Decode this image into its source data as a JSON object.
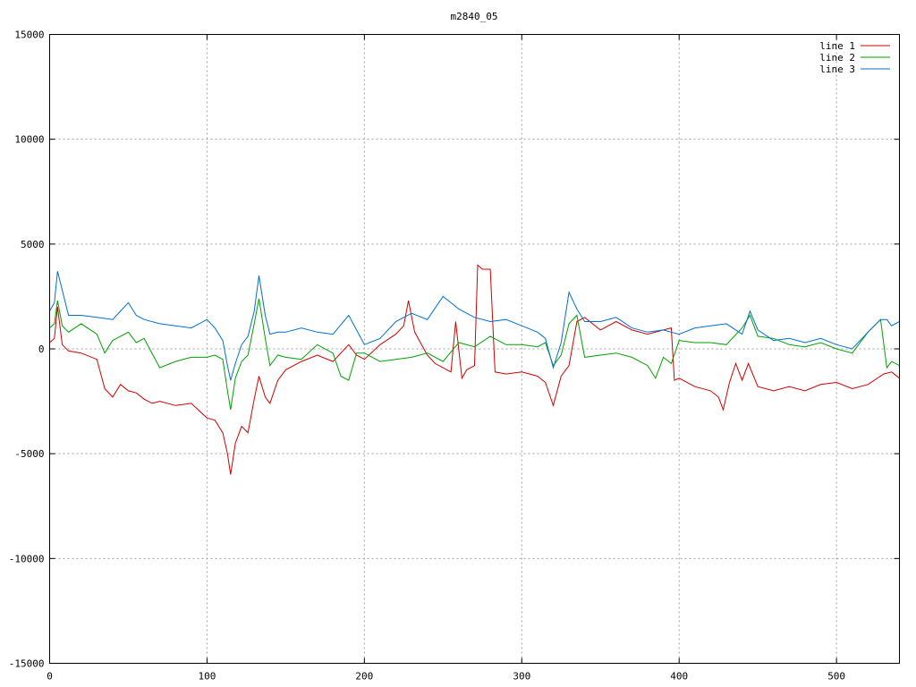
{
  "chart_data": {
    "type": "line",
    "title": "m2840_05",
    "xlabel": "",
    "ylabel": "",
    "xlim": [
      0,
      540
    ],
    "ylim": [
      -15000,
      15000
    ],
    "xticks": [
      0,
      100,
      200,
      300,
      400,
      500
    ],
    "yticks": [
      -15000,
      -10000,
      -5000,
      0,
      5000,
      10000,
      15000
    ],
    "grid": true,
    "legend_position": "top-right",
    "series": [
      {
        "name": "line 1",
        "color": "#d00000",
        "x": [
          0,
          3,
          5,
          8,
          12,
          20,
          30,
          35,
          40,
          45,
          50,
          55,
          60,
          65,
          70,
          80,
          90,
          100,
          105,
          110,
          113,
          115,
          118,
          122,
          126,
          130,
          133,
          137,
          140,
          145,
          150,
          160,
          170,
          180,
          190,
          195,
          200,
          210,
          220,
          225,
          228,
          232,
          240,
          245,
          255,
          258,
          262,
          265,
          270,
          272,
          275,
          280,
          283,
          290,
          300,
          310,
          315,
          320,
          325,
          330,
          335,
          340,
          350,
          360,
          370,
          380,
          390,
          395,
          397,
          400,
          410,
          420,
          425,
          428,
          432,
          436,
          440,
          444,
          450,
          460,
          470,
          480,
          490,
          500,
          510,
          520,
          530,
          535,
          540
        ],
        "y": [
          300,
          500,
          2000,
          200,
          -100,
          -200,
          -500,
          -1900,
          -2300,
          -1700,
          -2000,
          -2100,
          -2400,
          -2600,
          -2500,
          -2700,
          -2600,
          -3300,
          -3400,
          -4000,
          -5000,
          -6000,
          -4500,
          -3700,
          -4000,
          -2400,
          -1300,
          -2300,
          -2600,
          -1500,
          -1000,
          -600,
          -300,
          -600,
          200,
          -300,
          -500,
          200,
          700,
          1100,
          2300,
          800,
          -300,
          -700,
          -1100,
          1300,
          -1400,
          -1000,
          -800,
          4000,
          3800,
          3800,
          -1100,
          -1200,
          -1100,
          -1300,
          -1600,
          -2700,
          -1300,
          -800,
          1300,
          1500,
          900,
          1300,
          900,
          700,
          900,
          1000,
          -1500,
          -1400,
          -1800,
          -2000,
          -2300,
          -2900,
          -1600,
          -700,
          -1500,
          -700,
          -1800,
          -2000,
          -1800,
          -2000,
          -1700,
          -1600,
          -1900,
          -1700,
          -1200,
          -1100,
          -1400
        ]
      },
      {
        "name": "line 2",
        "color": "#00a000",
        "x": [
          0,
          3,
          5,
          8,
          12,
          20,
          30,
          35,
          40,
          45,
          50,
          55,
          60,
          70,
          80,
          90,
          100,
          105,
          110,
          113,
          115,
          118,
          122,
          126,
          130,
          133,
          137,
          140,
          145,
          150,
          160,
          170,
          180,
          185,
          190,
          195,
          200,
          210,
          220,
          230,
          240,
          250,
          260,
          270,
          280,
          290,
          300,
          310,
          315,
          320,
          325,
          330,
          335,
          340,
          350,
          360,
          370,
          380,
          385,
          390,
          395,
          400,
          410,
          420,
          430,
          440,
          445,
          450,
          460,
          470,
          480,
          490,
          500,
          510,
          520,
          528,
          532,
          535,
          540
        ],
        "y": [
          1000,
          1200,
          2300,
          1100,
          800,
          1200,
          700,
          -200,
          400,
          600,
          800,
          300,
          500,
          -900,
          -600,
          -400,
          -400,
          -300,
          -500,
          -2000,
          -2900,
          -1400,
          -600,
          -300,
          1200,
          2400,
          500,
          -800,
          -300,
          -400,
          -500,
          200,
          -200,
          -1300,
          -1500,
          -200,
          -200,
          -600,
          -500,
          -400,
          -200,
          -600,
          300,
          100,
          600,
          200,
          200,
          100,
          300,
          -800,
          -300,
          1200,
          1600,
          -400,
          -300,
          -200,
          -400,
          -800,
          -1400,
          -400,
          -700,
          400,
          300,
          300,
          200,
          1000,
          1600,
          600,
          500,
          200,
          100,
          300,
          0,
          -200,
          800,
          1400,
          -900,
          -600,
          -800
        ]
      },
      {
        "name": "line 3",
        "color": "#0070d0",
        "x": [
          0,
          3,
          5,
          8,
          12,
          20,
          30,
          40,
          50,
          55,
          60,
          70,
          80,
          90,
          100,
          105,
          110,
          113,
          115,
          118,
          122,
          126,
          130,
          133,
          137,
          140,
          145,
          150,
          160,
          170,
          180,
          190,
          195,
          200,
          210,
          220,
          230,
          240,
          250,
          260,
          270,
          280,
          290,
          300,
          310,
          315,
          320,
          325,
          330,
          335,
          340,
          350,
          360,
          370,
          380,
          390,
          395,
          400,
          410,
          420,
          430,
          440,
          445,
          450,
          460,
          470,
          480,
          490,
          500,
          510,
          520,
          528,
          532,
          535,
          540
        ],
        "y": [
          1800,
          2200,
          3700,
          2800,
          1600,
          1600,
          1500,
          1400,
          2200,
          1600,
          1400,
          1200,
          1100,
          1000,
          1400,
          1000,
          400,
          -800,
          -1500,
          -700,
          200,
          600,
          1800,
          3500,
          1600,
          700,
          800,
          800,
          1000,
          800,
          700,
          1600,
          900,
          200,
          500,
          1300,
          1700,
          1400,
          2500,
          1900,
          1500,
          1300,
          1400,
          1100,
          800,
          500,
          -900,
          300,
          2700,
          1900,
          1300,
          1300,
          1500,
          1000,
          800,
          900,
          800,
          700,
          1000,
          1100,
          1200,
          700,
          1800,
          900,
          400,
          500,
          300,
          500,
          200,
          0,
          800,
          1400,
          1400,
          1100,
          1300
        ]
      }
    ]
  }
}
